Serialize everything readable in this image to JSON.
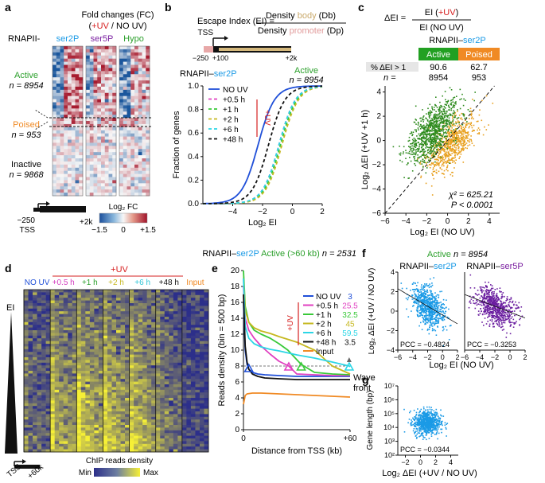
{
  "panel_a": {
    "letter": "a",
    "title_line1": "Fold changes (FC)",
    "title_line2_open": "(",
    "title_uv": "+UV",
    "title_line2_close": " / NO UV)",
    "rnapii_label": "RNAPII-",
    "col_labels": [
      "ser2P",
      "ser5P",
      "Hypo"
    ],
    "groups": [
      {
        "name": "Active",
        "n_label": "n = 8954",
        "color": "#2ca02c"
      },
      {
        "name": "Poised",
        "n_label": "n = 953",
        "color": "#f08a24"
      },
      {
        "name": "Inactive",
        "n_label": "n = 9868",
        "color": "#111111"
      }
    ],
    "tss_label": "TSS",
    "left_tick": "−250",
    "right_tick": "+2k",
    "legend_title": "Log₂ FC",
    "legend_ticks": [
      "−1.5",
      "0",
      "+1.5"
    ]
  },
  "panel_b": {
    "letter": "b",
    "escape_lhs": "Escape Index (EI) =",
    "numerator_pre": "Density ",
    "numerator_colored": "body",
    "numerator_post": " (Db)",
    "denominator_pre": "Density ",
    "denominator_colored": "promoter",
    "denominator_post": " (Dp)",
    "tss_label": "TSS",
    "ticks": [
      "−250",
      "+100",
      "+2k"
    ],
    "subtitle_main": "RNAPII–",
    "subtitle_colored": "ser2P",
    "active_label": "Active",
    "n_label": "n = 8954",
    "uv_bracket_label": "+UV",
    "chart_data": {
      "type": "line",
      "xlabel": "Log₂ EI",
      "ylabel": "Fraction of genes",
      "xlim": [
        -6,
        2
      ],
      "ylim": [
        0,
        1.0
      ],
      "xticks": [
        -4,
        -2,
        0,
        2
      ],
      "yticks": [
        0,
        0.2,
        0.4,
        0.6,
        0.8,
        1.0
      ],
      "series": [
        {
          "name": "NO UV",
          "color": "#1f4fd8",
          "dash": "",
          "midpoint": -2.3,
          "scale": 0.55
        },
        {
          "name": "+0.5 h",
          "color": "#e040c0",
          "dash": "4,3",
          "midpoint": -0.9,
          "scale": 0.55
        },
        {
          "name": "+1 h",
          "color": "#39c939",
          "dash": "4,3",
          "midpoint": -0.8,
          "scale": 0.55
        },
        {
          "name": "+2 h",
          "color": "#c6b820",
          "dash": "4,3",
          "midpoint": -0.7,
          "scale": 0.55
        },
        {
          "name": "+6 h",
          "color": "#2cd6e6",
          "dash": "4,3",
          "midpoint": -0.9,
          "scale": 0.55
        },
        {
          "name": "+48 h",
          "color": "#111111",
          "dash": "4,3",
          "midpoint": -1.6,
          "scale": 0.55
        }
      ]
    }
  },
  "panel_c": {
    "letter": "c",
    "delta_label": "ΔEI =",
    "num_pre": "EI (",
    "num_uv": "+UV",
    "num_post": ")",
    "den": "EI (NO UV)",
    "subtitle_main": "RNAPII–",
    "subtitle_colored": "ser2P",
    "header_active": "Active",
    "header_poised": "Poised",
    "row1_label": "% ΔEI > 1",
    "row1_values": [
      "90.6",
      "62.7"
    ],
    "row2_label": "n =",
    "row2_values": [
      "8954",
      "953"
    ],
    "stat_chi": "χ² = 625.21",
    "stat_p": "P < 0.0001",
    "chart_data": {
      "type": "scatter",
      "xlabel": "Log₂ EI (NO UV)",
      "ylabel": "Log₂ ΔEI (+UV +1 h)",
      "xlim": [
        -6,
        5
      ],
      "ylim": [
        -6,
        4.5
      ],
      "xticks": [
        -6,
        -4,
        -2,
        0,
        2,
        4
      ],
      "yticks": [
        -6,
        -4,
        -2,
        0,
        2,
        4
      ],
      "series": [
        {
          "name": "Active",
          "color": "#2e8b1e",
          "center": [
            -1.5,
            0.8
          ],
          "spread": [
            1.2,
            1.0
          ],
          "n": 900
        },
        {
          "name": "Poised",
          "color": "#e8a01e",
          "center": [
            0.3,
            -0.3
          ],
          "spread": [
            1.2,
            0.9
          ],
          "n": 700
        }
      ],
      "diagonal": "y = x"
    }
  },
  "panel_d": {
    "letter": "d",
    "title_main": "RNAPII–",
    "title_ser2p": "ser2P",
    "title_active": " Active (>60 kb) ",
    "title_n": "n = 2531",
    "uv_label": "+UV",
    "col_labels": [
      {
        "text": "NO UV",
        "color": "#1f4fd8"
      },
      {
        "text": "+0.5 h",
        "color": "#d43ec0"
      },
      {
        "text": "+1 h",
        "color": "#2ca02c"
      },
      {
        "text": "+2 h",
        "color": "#c6b820"
      },
      {
        "text": "+6 h",
        "color": "#2cc5d6"
      },
      {
        "text": "+48 h",
        "color": "#111111"
      },
      {
        "text": "Input",
        "color": "#f08a24"
      }
    ],
    "y_label": "EI",
    "tss_label": "TSS",
    "right_tick": "+60k",
    "legend_title": "ChIP reads density",
    "legend_min": "Min",
    "legend_max": "Max"
  },
  "panel_e": {
    "letter": "e",
    "uv_bracket": "+UV",
    "wave_front_label_1": "Wave",
    "wave_front_label_2": "front",
    "chart_data": {
      "type": "line",
      "xlabel": "Distance from TSS (kb)",
      "ylabel": "Reads density (bin = 500 bp)",
      "xlim": [
        0,
        60
      ],
      "ylim": [
        0,
        20
      ],
      "xtick_labels": [
        "0",
        "+60"
      ],
      "yticks": [
        0,
        2,
        4,
        6,
        8,
        10,
        12,
        14,
        16,
        18,
        20
      ],
      "legend": [
        {
          "name": "NO UV",
          "value": "3",
          "color": "#1f4fd8"
        },
        {
          "name": "+0.5 h",
          "value": "25.5",
          "color": "#e040c0"
        },
        {
          "name": "+1 h",
          "value": "32.5",
          "color": "#39c939"
        },
        {
          "name": "+2 h",
          "value": "45",
          "color": "#c6b820"
        },
        {
          "name": "+6 h",
          "value": "59.5",
          "color": "#2cd6e6"
        },
        {
          "name": "+48 h",
          "value": "3.5",
          "color": "#111111"
        },
        {
          "name": "Input",
          "value": "",
          "color": "#f08a24"
        }
      ],
      "series": [
        {
          "name": "NO UV",
          "color": "#1f4fd8",
          "x": [
            0,
            1,
            2,
            3,
            5,
            8,
            12,
            20,
            30,
            40,
            50,
            60
          ],
          "y": [
            16,
            10,
            8.2,
            7.6,
            7.2,
            7.0,
            6.9,
            6.8,
            6.7,
            6.7,
            6.7,
            6.7
          ]
        },
        {
          "name": "+0.5 h",
          "color": "#e040c0",
          "x": [
            0,
            1,
            3,
            6,
            10,
            15,
            20,
            25.5,
            30,
            40,
            50,
            60
          ],
          "y": [
            18,
            14,
            12.5,
            11.5,
            10.5,
            9.5,
            8.6,
            8.0,
            7.0,
            6.9,
            6.8,
            6.8
          ]
        },
        {
          "name": "+1 h",
          "color": "#39c939",
          "x": [
            0,
            1,
            3,
            6,
            10,
            15,
            20,
            25,
            32.5,
            40,
            50,
            60
          ],
          "y": [
            20,
            15.5,
            13.5,
            12.5,
            12,
            11.5,
            10.8,
            10,
            8.2,
            7.2,
            7.0,
            6.9
          ]
        },
        {
          "name": "+2 h",
          "color": "#c6b820",
          "x": [
            0,
            1,
            3,
            6,
            10,
            15,
            20,
            30,
            40,
            45,
            50,
            60
          ],
          "y": [
            19,
            15,
            13.5,
            12.8,
            12.4,
            12.1,
            11.7,
            11,
            10,
            9,
            8,
            7
          ]
        },
        {
          "name": "+6 h",
          "color": "#2cd6e6",
          "x": [
            0,
            1,
            3,
            6,
            10,
            15,
            20,
            30,
            40,
            50,
            59.5,
            60
          ],
          "y": [
            19,
            13,
            11.5,
            10.8,
            10.4,
            10.1,
            9.9,
            9.4,
            9,
            8.5,
            8,
            7.9
          ]
        },
        {
          "name": "+48 h",
          "color": "#111111",
          "x": [
            0,
            1,
            2,
            3,
            5,
            8,
            12,
            20,
            30,
            40,
            50,
            60
          ],
          "y": [
            17,
            10.5,
            8.5,
            7.6,
            7.0,
            6.7,
            6.5,
            6.4,
            6.3,
            6.3,
            6.3,
            6.3
          ]
        },
        {
          "name": "Input",
          "color": "#f08a24",
          "x": [
            0,
            1,
            2,
            5,
            10,
            20,
            30,
            40,
            50,
            60
          ],
          "y": [
            3.2,
            4.3,
            4.5,
            4.6,
            4.6,
            4.5,
            4.4,
            4.3,
            4.2,
            4.1
          ]
        }
      ],
      "wave_front_markers": [
        {
          "name": "NO UV",
          "x": 3,
          "y": 7.6,
          "color": "#1f4fd8"
        },
        {
          "name": "+0.5 h",
          "x": 25.5,
          "y": 7.8,
          "color": "#e040c0"
        },
        {
          "name": "+1 h",
          "x": 32.5,
          "y": 7.8,
          "color": "#39c939"
        },
        {
          "name": "+6 h",
          "x": 59.5,
          "y": 7.8,
          "color": "#2cd6e6"
        }
      ],
      "threshold_y": 8
    }
  },
  "panel_f": {
    "letter": "f",
    "title_active": "Active",
    "title_n": " n = 8954",
    "left_title_main": "RNAPII–",
    "left_title_colored": "ser2P",
    "right_title_main": "RNAPII–",
    "right_title_colored": "ser5P",
    "chart_data": [
      {
        "type": "scatter",
        "xlabel": "Log₂ EI (NO UV)",
        "ylabel": "Log₂ ΔEI (+UV / NO UV)",
        "xlim": [
          -6,
          2
        ],
        "ylim": [
          -4,
          4
        ],
        "xticks": [
          -6,
          -4,
          -2,
          0,
          2
        ],
        "yticks": [
          -4,
          -2,
          0,
          2,
          4
        ],
        "color": "#1a9ae6",
        "pcc": "PCC = −0.4824",
        "center": [
          -2,
          0.5
        ],
        "spread": [
          1.1,
          1.0
        ],
        "slope": -0.45,
        "n": 700
      },
      {
        "type": "scatter",
        "xlabel": "Log₂ EI (NO UV)",
        "ylabel": "",
        "xlim": [
          -6,
          2
        ],
        "ylim": [
          -4,
          4
        ],
        "xticks": [
          -6,
          -4,
          -2,
          0,
          2
        ],
        "yticks": [],
        "color": "#6b1fa0",
        "pcc": "PCC = −0.3253",
        "center": [
          -2,
          0.5
        ],
        "spread": [
          1.3,
          0.9
        ],
        "slope": -0.3,
        "n": 700
      }
    ]
  },
  "panel_g": {
    "letter": "g",
    "chart_data": {
      "type": "scatter",
      "xlabel": "Log₂ ΔEI (+UV / NO UV)",
      "ylabel": "Gene length (bp)",
      "xlim": [
        -3,
        5
      ],
      "ylim_log10": [
        2,
        7
      ],
      "xticks": [
        -2,
        0,
        2,
        4
      ],
      "ytick_labels": [
        "10²",
        "10³",
        "10⁴",
        "10⁵",
        "10⁶",
        "10⁷"
      ],
      "color": "#1a9ae6",
      "pcc": "PCC = −0.0344",
      "center": [
        0.8,
        4.4
      ],
      "spread": [
        0.9,
        0.45
      ],
      "n": 700
    }
  }
}
